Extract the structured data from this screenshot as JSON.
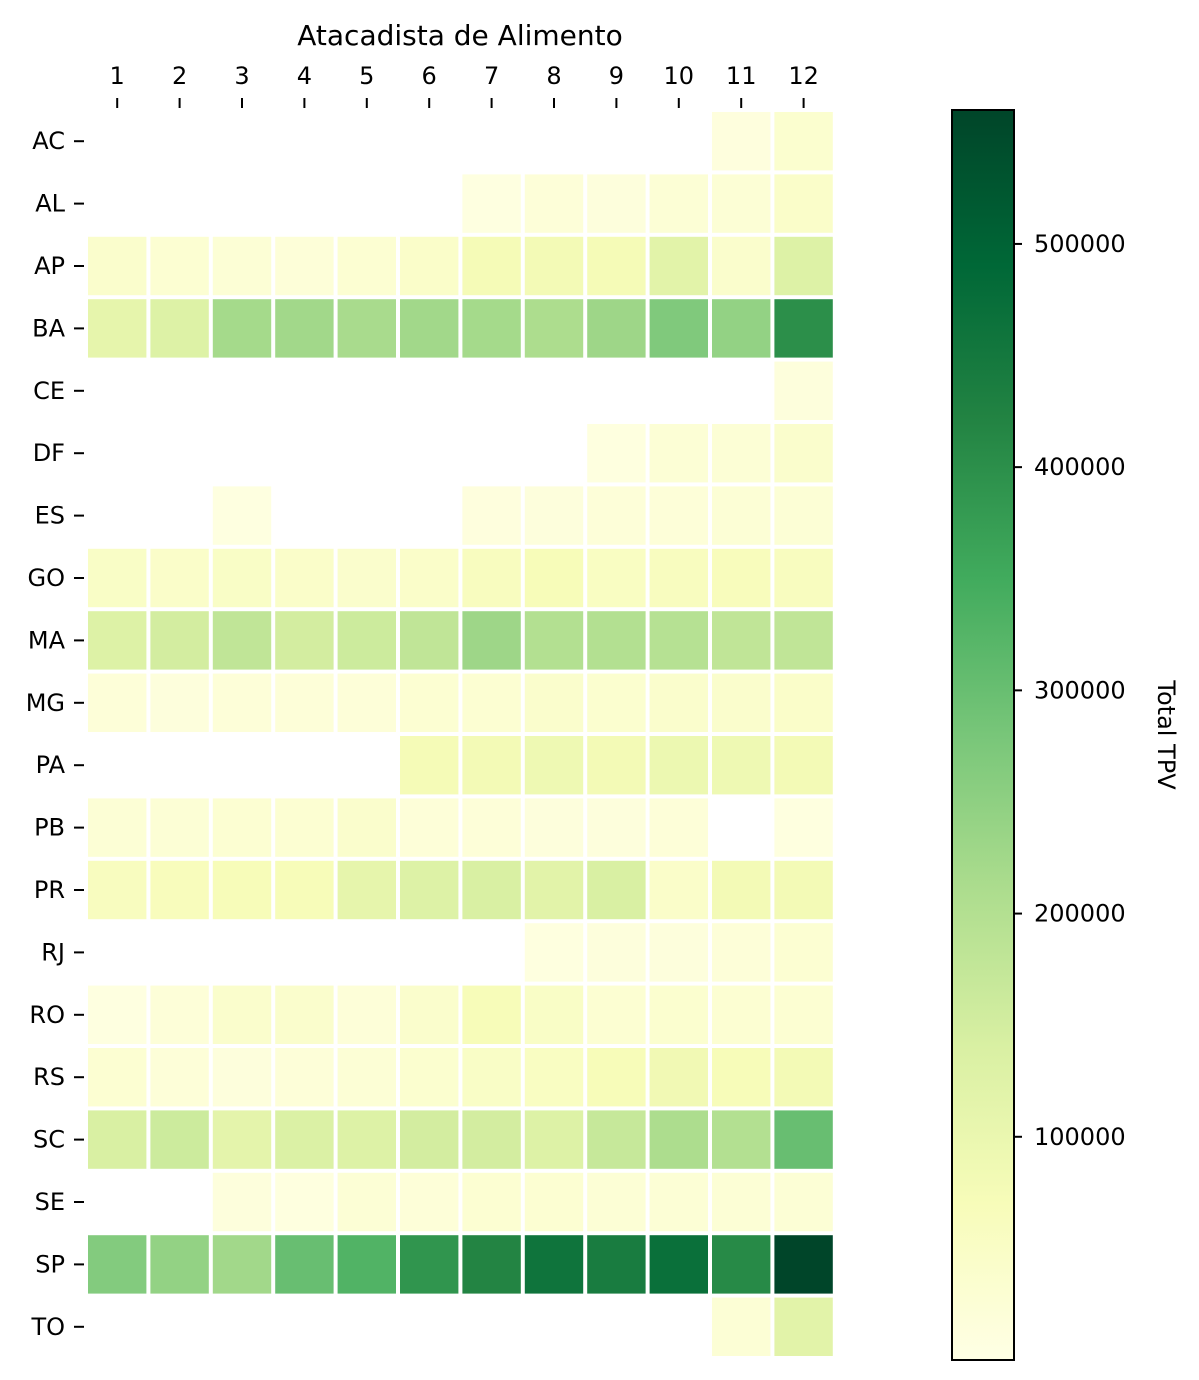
{
  "chart_data": {
    "type": "heatmap",
    "title": "Atacadista de Alimento",
    "x_categories": [
      "1",
      "2",
      "3",
      "4",
      "5",
      "6",
      "7",
      "8",
      "9",
      "10",
      "11",
      "12"
    ],
    "y_categories": [
      "AC",
      "AL",
      "AP",
      "BA",
      "CE",
      "DF",
      "ES",
      "GO",
      "MA",
      "MG",
      "PA",
      "PB",
      "PR",
      "RJ",
      "RO",
      "RS",
      "SC",
      "SE",
      "SP",
      "TO"
    ],
    "values": [
      [
        null,
        null,
        null,
        null,
        null,
        null,
        null,
        null,
        null,
        null,
        12000,
        35000
      ],
      [
        null,
        null,
        null,
        null,
        null,
        null,
        8000,
        20000,
        15000,
        25000,
        25000,
        45000
      ],
      [
        40000,
        30000,
        25000,
        20000,
        30000,
        45000,
        75000,
        80000,
        75000,
        120000,
        40000,
        130000
      ],
      [
        110000,
        130000,
        220000,
        225000,
        215000,
        225000,
        220000,
        210000,
        230000,
        270000,
        245000,
        400000
      ],
      [
        null,
        null,
        null,
        null,
        null,
        null,
        null,
        null,
        null,
        null,
        null,
        15000
      ],
      [
        null,
        null,
        null,
        null,
        null,
        null,
        null,
        null,
        10000,
        25000,
        25000,
        40000
      ],
      [
        null,
        null,
        8000,
        null,
        null,
        null,
        12000,
        15000,
        20000,
        20000,
        25000,
        25000
      ],
      [
        50000,
        45000,
        50000,
        45000,
        40000,
        45000,
        60000,
        70000,
        55000,
        60000,
        65000,
        60000
      ],
      [
        130000,
        150000,
        180000,
        150000,
        160000,
        180000,
        230000,
        200000,
        200000,
        195000,
        180000,
        180000
      ],
      [
        20000,
        15000,
        20000,
        20000,
        20000,
        30000,
        30000,
        40000,
        35000,
        40000,
        40000,
        45000
      ],
      [
        null,
        null,
        null,
        null,
        null,
        75000,
        80000,
        90000,
        80000,
        95000,
        90000,
        80000
      ],
      [
        25000,
        25000,
        30000,
        30000,
        40000,
        20000,
        20000,
        15000,
        15000,
        20000,
        null,
        10000
      ],
      [
        60000,
        65000,
        70000,
        70000,
        110000,
        130000,
        140000,
        120000,
        140000,
        45000,
        80000,
        80000
      ],
      [
        null,
        null,
        null,
        null,
        null,
        null,
        null,
        10000,
        15000,
        15000,
        20000,
        30000
      ],
      [
        8000,
        20000,
        40000,
        40000,
        20000,
        40000,
        70000,
        50000,
        30000,
        35000,
        30000,
        30000
      ],
      [
        30000,
        20000,
        15000,
        20000,
        25000,
        35000,
        50000,
        55000,
        70000,
        85000,
        70000,
        80000
      ],
      [
        140000,
        160000,
        115000,
        135000,
        130000,
        150000,
        150000,
        130000,
        170000,
        210000,
        200000,
        300000
      ],
      [
        null,
        null,
        15000,
        10000,
        25000,
        20000,
        30000,
        30000,
        25000,
        25000,
        25000,
        25000
      ],
      [
        265000,
        245000,
        225000,
        300000,
        330000,
        390000,
        420000,
        460000,
        440000,
        470000,
        410000,
        560000
      ],
      [
        null,
        null,
        null,
        null,
        null,
        null,
        null,
        null,
        null,
        null,
        25000,
        120000
      ]
    ],
    "colorbar": {
      "label": "Total TPV",
      "min": 0,
      "max": 560000,
      "ticks": [
        100000,
        200000,
        300000,
        400000,
        500000
      ],
      "tick_labels": [
        "100000",
        "200000",
        "300000",
        "400000",
        "500000"
      ],
      "colormap": "YlGn",
      "colors": [
        "#ffffe5",
        "#f7fcb9",
        "#d9f0a3",
        "#addd8e",
        "#78c679",
        "#41ab5d",
        "#238443",
        "#006837",
        "#004529"
      ]
    },
    "grid": false,
    "x_axis_position": "top",
    "colorbar_position": "right"
  }
}
